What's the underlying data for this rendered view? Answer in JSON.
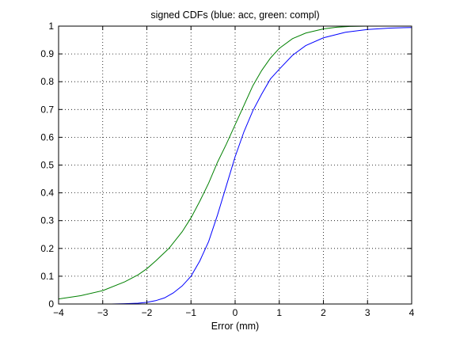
{
  "chart_data": {
    "type": "line",
    "title": "signed CDFs (blue: acc, green: compl)",
    "xlabel": "Error (mm)",
    "ylabel": "",
    "xlim": [
      -4,
      4
    ],
    "ylim": [
      0,
      1
    ],
    "xticks": [
      -4,
      -3,
      -2,
      -1,
      0,
      1,
      2,
      3,
      4
    ],
    "xtick_labels": [
      "−4",
      "−3",
      "−2",
      "−1",
      "0",
      "1",
      "2",
      "3",
      "4"
    ],
    "yticks": [
      0,
      0.1,
      0.2,
      0.3,
      0.4,
      0.5,
      0.6,
      0.7,
      0.8,
      0.9,
      1
    ],
    "ytick_labels": [
      "0",
      "0.1",
      "0.2",
      "0.3",
      "0.4",
      "0.5",
      "0.6",
      "0.7",
      "0.8",
      "0.9",
      "1"
    ],
    "grid": true,
    "legend": "none",
    "series": [
      {
        "color": "#0000ff",
        "x": [
          -2.8,
          -2.5,
          -2.2,
          -2.0,
          -1.8,
          -1.6,
          -1.4,
          -1.2,
          -1.0,
          -0.8,
          -0.6,
          -0.4,
          -0.2,
          0.0,
          0.2,
          0.4,
          0.6,
          0.8,
          1.0,
          1.3,
          1.6,
          2.0,
          2.5,
          3.0,
          3.5,
          4.0
        ],
        "y": [
          0.0,
          0.001,
          0.003,
          0.006,
          0.012,
          0.022,
          0.04,
          0.065,
          0.1,
          0.155,
          0.225,
          0.32,
          0.425,
          0.53,
          0.62,
          0.695,
          0.755,
          0.81,
          0.845,
          0.895,
          0.93,
          0.958,
          0.978,
          0.988,
          0.993,
          0.995
        ]
      },
      {
        "color": "#008000",
        "x": [
          -4.0,
          -3.5,
          -3.0,
          -2.5,
          -2.2,
          -2.0,
          -1.8,
          -1.5,
          -1.2,
          -1.0,
          -0.8,
          -0.6,
          -0.4,
          -0.2,
          0.0,
          0.2,
          0.4,
          0.6,
          0.8,
          1.0,
          1.3,
          1.6,
          2.0,
          2.3,
          2.6,
          3.0,
          4.0
        ],
        "y": [
          0.018,
          0.03,
          0.048,
          0.08,
          0.105,
          0.127,
          0.155,
          0.2,
          0.26,
          0.31,
          0.37,
          0.435,
          0.51,
          0.575,
          0.645,
          0.715,
          0.785,
          0.84,
          0.885,
          0.92,
          0.955,
          0.975,
          0.99,
          0.996,
          0.999,
          1.0,
          1.0
        ]
      }
    ]
  }
}
